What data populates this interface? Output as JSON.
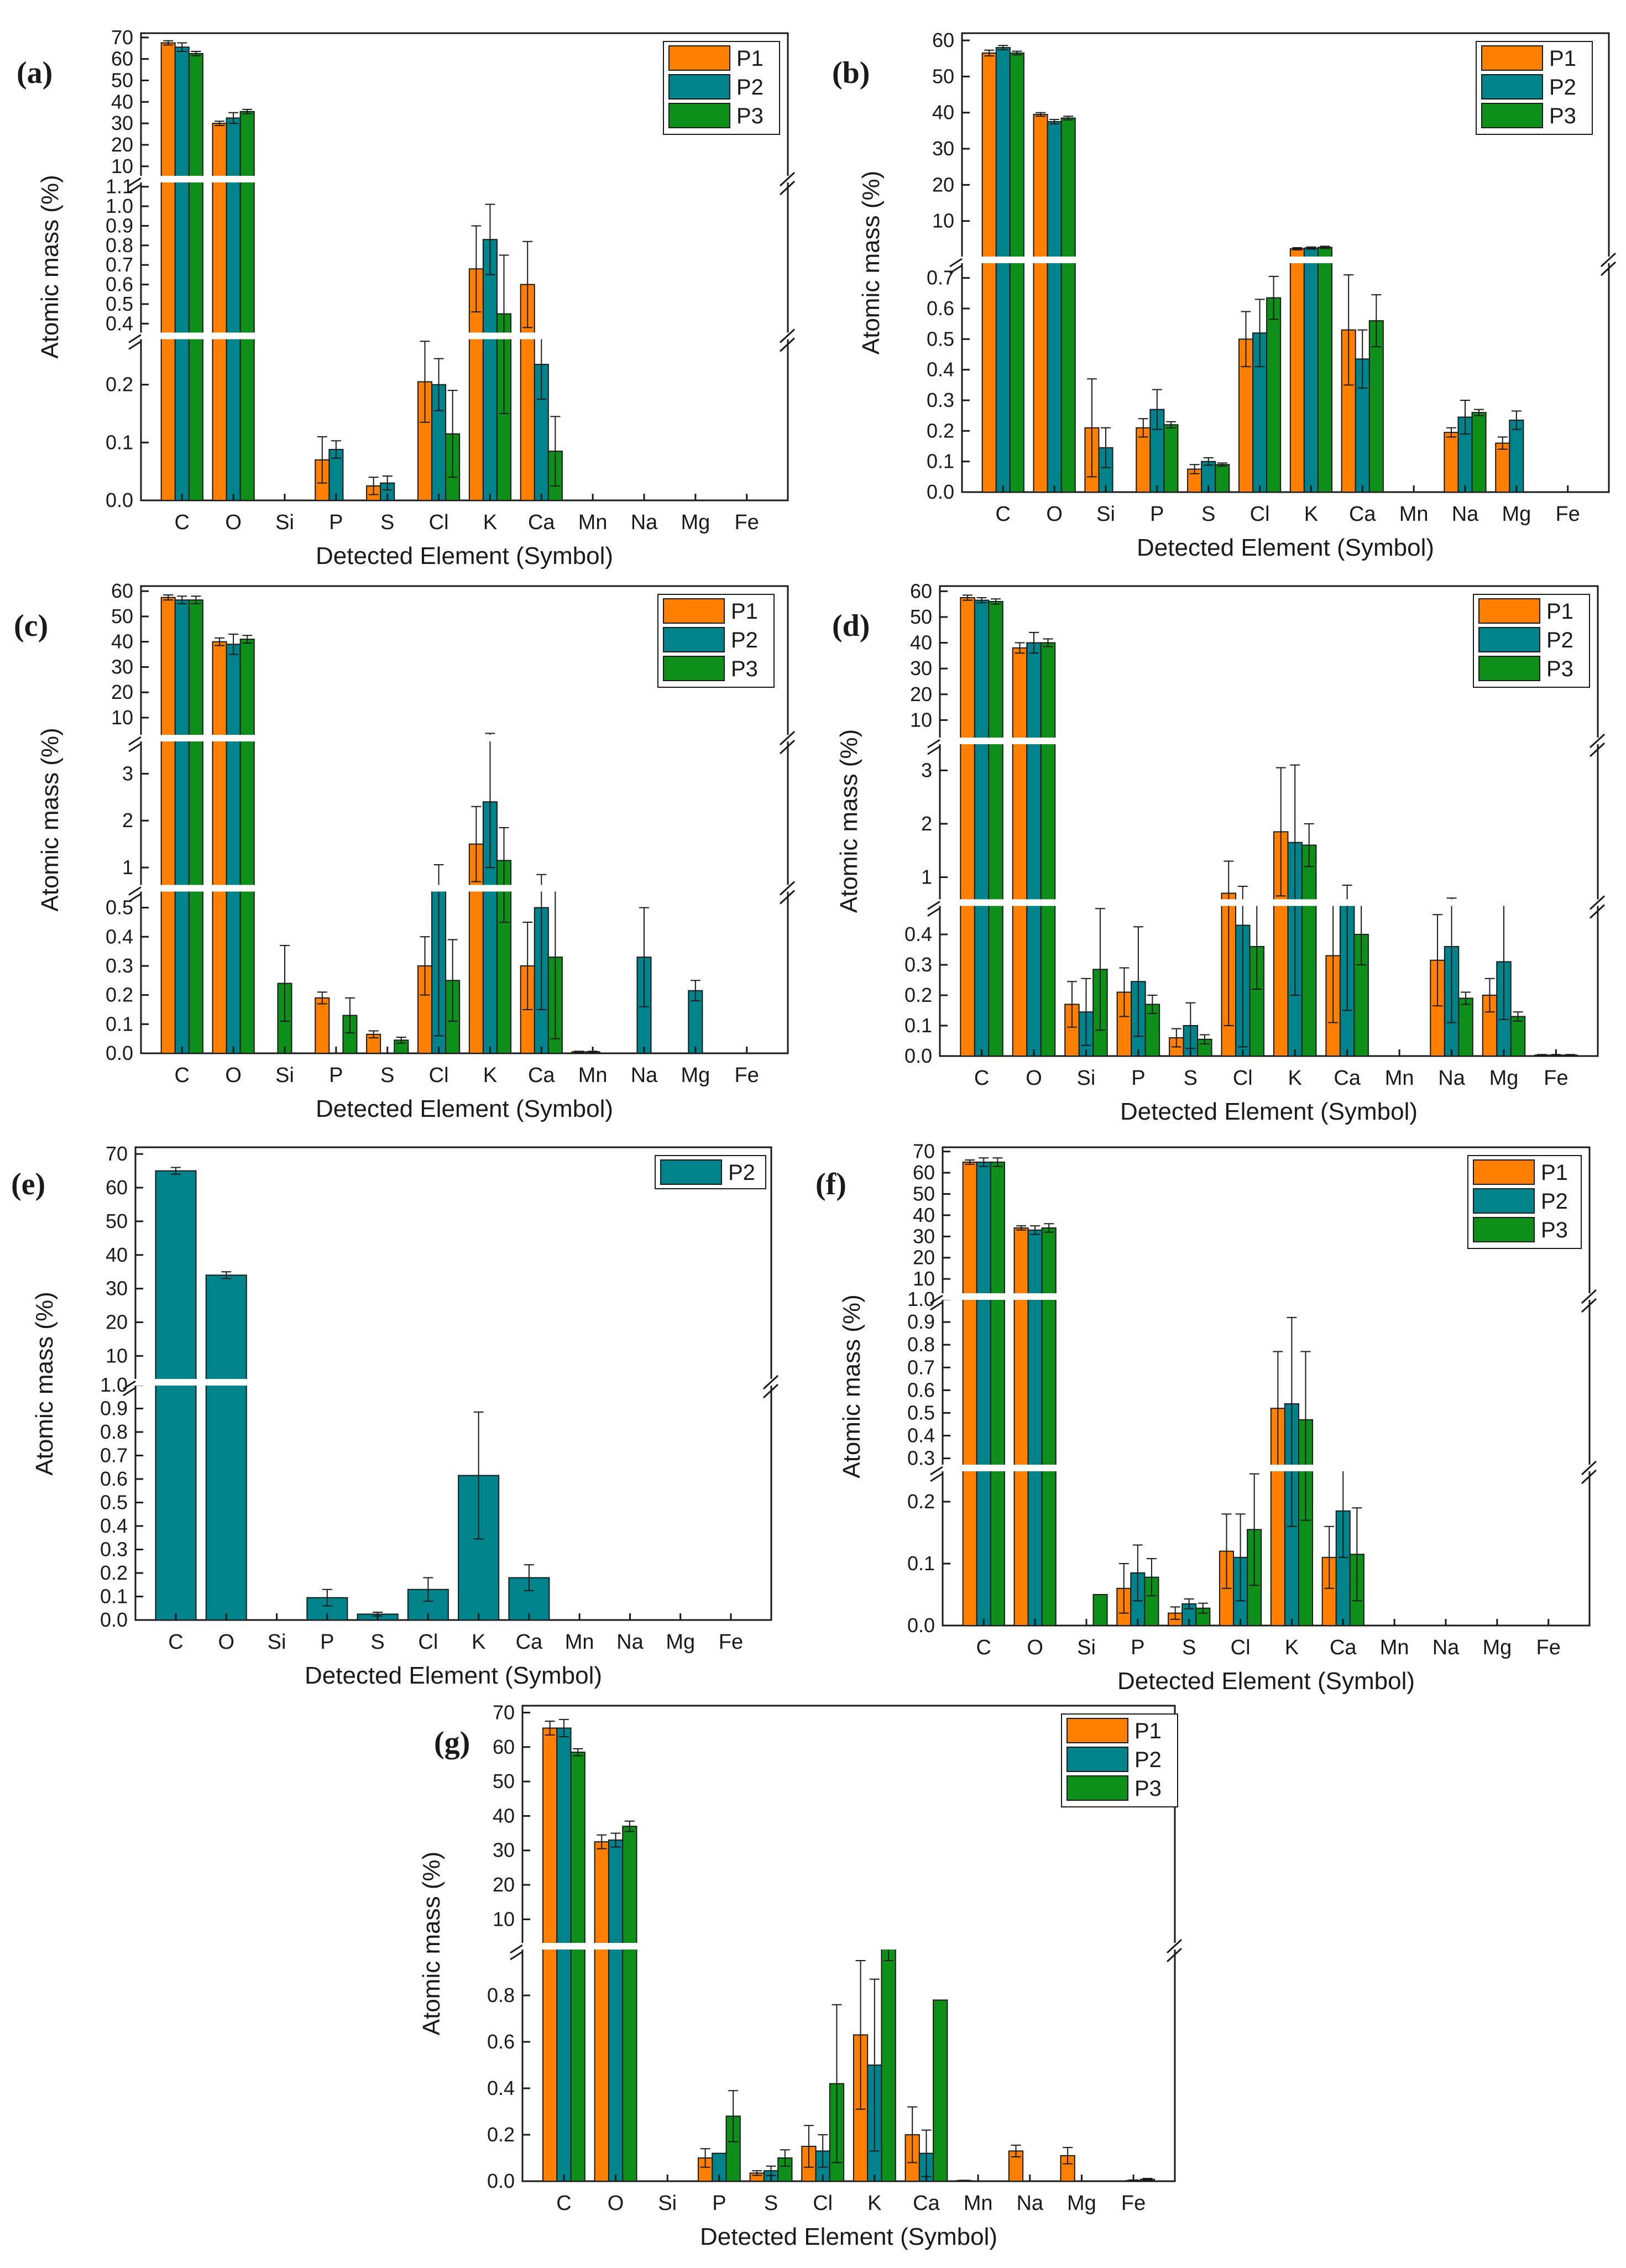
{
  "figure": {
    "colors": {
      "P1": "#ff8000",
      "P2": "#00838a",
      "P3": "#0d8f1a"
    },
    "series_names": [
      "P1",
      "P2",
      "P3"
    ]
  },
  "chart_data": [
    {
      "type": "bar",
      "panel_label": "(a)",
      "xlabel": "Detected Element (Symbol)",
      "ylabel": "Atomic mass (%)",
      "categories": [
        "C",
        "O",
        "Si",
        "P",
        "S",
        "Cl",
        "K",
        "Ca",
        "Mn",
        "Na",
        "Mg",
        "Fe"
      ],
      "segments": [
        {
          "range": [
            0,
            0.28
          ],
          "ticks": [
            0.0,
            0.1,
            0.2
          ],
          "tick_labels": [
            "0.0",
            "0.1",
            "0.2"
          ]
        },
        {
          "range": [
            0.35,
            1.15
          ],
          "ticks": [
            0.4,
            0.5,
            0.6,
            0.7,
            0.8,
            0.9,
            1.0,
            1.1
          ],
          "tick_labels": [
            "0.4",
            "0.5",
            "0.6",
            "0.7",
            "0.8",
            "0.9",
            "1.0",
            "1.1"
          ]
        },
        {
          "range": [
            3,
            72
          ],
          "ticks": [
            10,
            20,
            30,
            40,
            50,
            60,
            70
          ],
          "tick_labels": [
            "10",
            "20",
            "30",
            "40",
            "50",
            "60",
            "70"
          ]
        }
      ],
      "series": [
        {
          "name": "P1",
          "values": [
            67.5,
            30,
            0,
            0.07,
            0.025,
            0.205,
            0.68,
            0.6,
            0,
            0,
            0,
            0
          ],
          "errors": [
            1,
            1,
            0,
            0.04,
            0.015,
            0.07,
            0.22,
            0.22,
            0,
            0,
            0,
            0
          ]
        },
        {
          "name": "P2",
          "values": [
            65.5,
            32.5,
            0,
            0.088,
            0.03,
            0.2,
            0.83,
            0.235,
            0,
            0,
            0,
            0
          ],
          "errors": [
            2,
            2.5,
            0,
            0.015,
            0.012,
            0.045,
            0.18,
            0.06,
            0,
            0,
            0,
            0
          ]
        },
        {
          "name": "P3",
          "values": [
            62.5,
            35.5,
            0,
            0,
            0,
            0.115,
            0.45,
            0.085,
            0,
            0,
            0,
            0
          ],
          "errors": [
            1,
            1,
            0,
            0,
            0,
            0.075,
            0.3,
            0.06,
            0,
            0,
            0,
            0
          ]
        }
      ]
    },
    {
      "type": "bar",
      "panel_label": "(b)",
      "xlabel": "Detected Element (Symbol)",
      "ylabel": "Atomic mass (%)",
      "categories": [
        "C",
        "O",
        "Si",
        "P",
        "S",
        "Cl",
        "K",
        "Ca",
        "Mn",
        "Na",
        "Mg",
        "Fe"
      ],
      "segments": [
        {
          "range": [
            0,
            0.75
          ],
          "ticks": [
            0.0,
            0.1,
            0.2,
            0.3,
            0.4,
            0.5,
            0.6,
            0.7
          ],
          "tick_labels": [
            "0.0",
            "0.1",
            "0.2",
            "0.3",
            "0.4",
            "0.5",
            "0.6",
            "0.7"
          ]
        },
        {
          "range": [
            0,
            62
          ],
          "ticks": [
            10,
            20,
            30,
            40,
            50,
            60
          ],
          "tick_labels": [
            "10",
            "20",
            "30",
            "40",
            "50",
            "60"
          ]
        }
      ],
      "series": [
        {
          "name": "P1",
          "values": [
            56.5,
            39.5,
            0.21,
            0.21,
            0.075,
            0.5,
            2.3,
            0.53,
            0,
            0.195,
            0.16,
            0
          ],
          "errors": [
            0.8,
            0.5,
            0.16,
            0.03,
            0.015,
            0.09,
            0.3,
            0.18,
            0,
            0.015,
            0.02,
            0
          ]
        },
        {
          "name": "P2",
          "values": [
            58,
            37.5,
            0.145,
            0.27,
            0.1,
            0.52,
            2.5,
            0.435,
            0,
            0.245,
            0.235,
            0
          ],
          "errors": [
            0.6,
            0.6,
            0.065,
            0.065,
            0.012,
            0.11,
            0.3,
            0.095,
            0,
            0.055,
            0.03,
            0
          ]
        },
        {
          "name": "P3",
          "values": [
            56.5,
            38.5,
            0,
            0.22,
            0.09,
            0.635,
            2.7,
            0.56,
            0,
            0.26,
            0,
            0
          ],
          "errors": [
            0.5,
            0.5,
            0,
            0.01,
            0.005,
            0.07,
            0.3,
            0.085,
            0,
            0.01,
            0,
            0
          ]
        }
      ]
    },
    {
      "type": "bar",
      "panel_label": "(c)",
      "xlabel": "Detected Element (Symbol)",
      "ylabel": "Atomic mass (%)",
      "categories": [
        "C",
        "O",
        "Si",
        "P",
        "S",
        "Cl",
        "K",
        "Ca",
        "Mn",
        "Na",
        "Mg",
        "Fe"
      ],
      "segments": [
        {
          "range": [
            0,
            0.56
          ],
          "ticks": [
            0.0,
            0.1,
            0.2,
            0.3,
            0.4,
            0.5
          ],
          "tick_labels": [
            "0.0",
            "0.1",
            "0.2",
            "0.3",
            "0.4",
            "0.5"
          ]
        },
        {
          "range": [
            0.6,
            3.7
          ],
          "ticks": [
            1,
            2,
            3
          ],
          "tick_labels": [
            "1",
            "2",
            "3"
          ]
        },
        {
          "range": [
            3,
            62
          ],
          "ticks": [
            10,
            20,
            30,
            40,
            50,
            60
          ],
          "tick_labels": [
            "10",
            "20",
            "30",
            "40",
            "50",
            "60"
          ]
        }
      ],
      "series": [
        {
          "name": "P1",
          "values": [
            57.5,
            40,
            0,
            0.19,
            0.065,
            0.3,
            1.5,
            0.3,
            0.005,
            0,
            0,
            0
          ],
          "errors": [
            1,
            1.5,
            0,
            0.02,
            0.012,
            0.1,
            0.8,
            0.15,
            0.002,
            0,
            0,
            0
          ]
        },
        {
          "name": "P2",
          "values": [
            56.5,
            39,
            0,
            0,
            0,
            0.56,
            2.4,
            0.5,
            0.005,
            0.33,
            0.215,
            0
          ],
          "errors": [
            1.5,
            4,
            0,
            0,
            0,
            0.5,
            1.4,
            0.35,
            0.002,
            0.17,
            0.035,
            0
          ]
        },
        {
          "name": "P3",
          "values": [
            56.5,
            41,
            0,
            0.13,
            0.045,
            0.25,
            1.15,
            0.33,
            0,
            0,
            0,
            0
          ],
          "errors": [
            1.5,
            1.5,
            0,
            0.06,
            0.01,
            0.14,
            0.7,
            0.28,
            0,
            0,
            0,
            0
          ]
        }
      ],
      "extra_bars": [
        {
          "category": "Si",
          "value": 0.24,
          "error": 0.13,
          "series": "P3",
          "position": "center"
        }
      ]
    },
    {
      "type": "bar",
      "panel_label": "(d)",
      "xlabel": "Detected Element (Symbol)",
      "ylabel": "Atomic mass (%)",
      "categories": [
        "C",
        "O",
        "Si",
        "P",
        "S",
        "Cl",
        "K",
        "Ca",
        "Mn",
        "Na",
        "Mg",
        "Fe"
      ],
      "segments": [
        {
          "range": [
            0,
            0.5
          ],
          "ticks": [
            0.0,
            0.1,
            0.2,
            0.3,
            0.4
          ],
          "tick_labels": [
            "0.0",
            "0.1",
            "0.2",
            "0.3",
            "0.4"
          ]
        },
        {
          "range": [
            0.55,
            3.5
          ],
          "ticks": [
            1,
            2,
            3
          ],
          "tick_labels": [
            "1",
            "2",
            "3"
          ]
        },
        {
          "range": [
            3,
            62
          ],
          "ticks": [
            10,
            20,
            30,
            40,
            50,
            60
          ],
          "tick_labels": [
            "10",
            "20",
            "30",
            "40",
            "50",
            "60"
          ]
        }
      ],
      "series": [
        {
          "name": "P1",
          "values": [
            57.5,
            38,
            0.17,
            0.21,
            0.06,
            0.7,
            1.85,
            0.33,
            0,
            0.315,
            0.2,
            0.003
          ],
          "errors": [
            1,
            2,
            0.075,
            0.08,
            0.03,
            0.6,
            1.2,
            0.22,
            0,
            0.15,
            0.055,
            0.002
          ]
        },
        {
          "name": "P2",
          "values": [
            56.5,
            40,
            0.145,
            0.245,
            0.1,
            0.43,
            1.65,
            0.5,
            0,
            0.36,
            0.31,
            0.003
          ],
          "errors": [
            1,
            4,
            0.11,
            0.18,
            0.075,
            0.4,
            1.45,
            0.35,
            0,
            0.25,
            0.19,
            0.002
          ]
        },
        {
          "name": "P3",
          "values": [
            56,
            40,
            0.285,
            0.17,
            0.055,
            0.36,
            1.6,
            0.4,
            0,
            0.19,
            0.13,
            0.003
          ],
          "errors": [
            1,
            1.5,
            0.2,
            0.03,
            0.015,
            0.14,
            0.4,
            0.1,
            0,
            0.02,
            0.015,
            0.002
          ]
        }
      ]
    },
    {
      "type": "bar",
      "panel_label": "(e)",
      "xlabel": "Detected Element (Symbol)",
      "ylabel": "Atomic mass (%)",
      "categories": [
        "C",
        "O",
        "Si",
        "P",
        "S",
        "Cl",
        "K",
        "Ca",
        "Mn",
        "Na",
        "Mg",
        "Fe"
      ],
      "segments": [
        {
          "range": [
            0,
            1.0
          ],
          "ticks": [
            0.0,
            0.1,
            0.2,
            0.3,
            0.4,
            0.5,
            0.6,
            0.7,
            0.8,
            0.9,
            1.0
          ],
          "tick_labels": [
            "0.0",
            "0.1",
            "0.2",
            "0.3",
            "0.4",
            "0.5",
            "0.6",
            "0.7",
            "0.8",
            "0.9",
            "1.0"
          ]
        },
        {
          "range": [
            3,
            72
          ],
          "ticks": [
            10,
            20,
            30,
            40,
            50,
            60,
            70
          ],
          "tick_labels": [
            "10",
            "20",
            "30",
            "40",
            "50",
            "60",
            "70"
          ]
        }
      ],
      "series": [
        {
          "name": "P2",
          "values": [
            65,
            34,
            0,
            0.095,
            0.025,
            0.13,
            0.615,
            0.18,
            0,
            0,
            0,
            0
          ],
          "errors": [
            1,
            1,
            0,
            0.035,
            0.008,
            0.05,
            0.27,
            0.055,
            0,
            0,
            0,
            0
          ]
        }
      ]
    },
    {
      "type": "bar",
      "panel_label": "(f)",
      "xlabel": "Detected Element (Symbol)",
      "ylabel": "Atomic mass (%)",
      "categories": [
        "C",
        "O",
        "Si",
        "P",
        "S",
        "Cl",
        "K",
        "Ca",
        "Mn",
        "Na",
        "Mg",
        "Fe"
      ],
      "segments": [
        {
          "range": [
            0,
            0.25
          ],
          "ticks": [
            0.0,
            0.1,
            0.2
          ],
          "tick_labels": [
            "0.0",
            "0.1",
            "0.2"
          ]
        },
        {
          "range": [
            0.27,
            1.0
          ],
          "ticks": [
            0.3,
            0.4,
            0.5,
            0.6,
            0.7,
            0.8,
            0.9,
            1.0
          ],
          "tick_labels": [
            "0.3",
            "0.4",
            "0.5",
            "0.6",
            "0.7",
            "0.8",
            "0.9",
            "1.0"
          ]
        },
        {
          "range": [
            3,
            72
          ],
          "ticks": [
            10,
            20,
            30,
            40,
            50,
            60,
            70
          ],
          "tick_labels": [
            "10",
            "20",
            "30",
            "40",
            "50",
            "60",
            "70"
          ]
        }
      ],
      "series": [
        {
          "name": "P1",
          "values": [
            65,
            34,
            0,
            0.06,
            0.02,
            0.12,
            0.52,
            0.11,
            0,
            0,
            0,
            0
          ],
          "errors": [
            1,
            1,
            0,
            0.04,
            0.01,
            0.06,
            0.25,
            0.05,
            0,
            0,
            0,
            0
          ]
        },
        {
          "name": "P2",
          "values": [
            65,
            33,
            0,
            0.085,
            0.035,
            0.11,
            0.54,
            0.185,
            0,
            0,
            0,
            0
          ],
          "errors": [
            2,
            2,
            0,
            0.045,
            0.008,
            0.07,
            0.38,
            0.075,
            0,
            0,
            0,
            0
          ]
        },
        {
          "name": "P3",
          "values": [
            65,
            34,
            0.05,
            0.078,
            0.028,
            0.155,
            0.47,
            0.115,
            0,
            0,
            0,
            0
          ],
          "errors": [
            2,
            2,
            0,
            0.03,
            0.008,
            0.09,
            0.3,
            0.075,
            0,
            0,
            0,
            0
          ]
        }
      ]
    },
    {
      "type": "bar",
      "panel_label": "(g)",
      "xlabel": "Detected Element (Symbol)",
      "ylabel": "Atomic mass (%)",
      "categories": [
        "C",
        "O",
        "Si",
        "P",
        "S",
        "Cl",
        "K",
        "Ca",
        "Mn",
        "Na",
        "Mg",
        "Fe"
      ],
      "segments": [
        {
          "range": [
            0,
            1.0
          ],
          "ticks": [
            0.0,
            0.2,
            0.4,
            0.6,
            0.8
          ],
          "tick_labels": [
            "0.0",
            "0.2",
            "0.4",
            "0.6",
            "0.8"
          ]
        },
        {
          "range": [
            3,
            72
          ],
          "ticks": [
            10,
            20,
            30,
            40,
            50,
            60,
            70
          ],
          "tick_labels": [
            "10",
            "20",
            "30",
            "40",
            "50",
            "60",
            "70"
          ]
        }
      ],
      "series": [
        {
          "name": "P1",
          "values": [
            65.5,
            32.5,
            0,
            0.1,
            0.035,
            0.15,
            0.63,
            0.2,
            0.003,
            0.13,
            0.11,
            0
          ],
          "errors": [
            2,
            2,
            0,
            0.04,
            0.01,
            0.09,
            0.32,
            0.12,
            0.001,
            0.025,
            0.035,
            0
          ]
        },
        {
          "name": "P2",
          "values": [
            65.5,
            33,
            0,
            0.12,
            0.045,
            0.13,
            0.5,
            0.12,
            0,
            0,
            0,
            0.003
          ],
          "errors": [
            2.5,
            2,
            0,
            0,
            0.02,
            0.07,
            0.37,
            0.1,
            0,
            0,
            0,
            0.002
          ]
        },
        {
          "name": "P3",
          "values": [
            58.5,
            37,
            0,
            0.28,
            0.1,
            0.42,
            1.0,
            0.78,
            0,
            0,
            0,
            0.008
          ],
          "errors": [
            1,
            1.5,
            0,
            0.11,
            0.035,
            0.34,
            0.05,
            0,
            0,
            0,
            0,
            0.004
          ]
        }
      ]
    }
  ]
}
